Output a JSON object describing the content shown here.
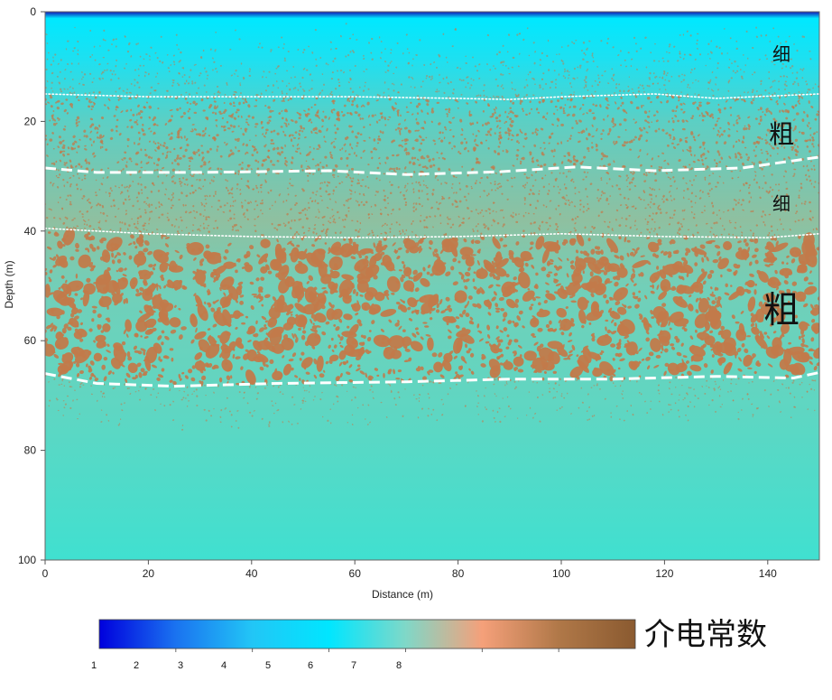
{
  "chart_data": {
    "type": "heatmap",
    "xlabel": "Distance (m)",
    "ylabel": "Depth (m)",
    "xlim": [
      0,
      150
    ],
    "ylim": [
      0,
      100
    ],
    "y_inverted": true,
    "x_ticks": [
      0,
      20,
      40,
      60,
      80,
      100,
      120,
      140
    ],
    "y_ticks": [
      0,
      20,
      40,
      60,
      80,
      100
    ],
    "layers": [
      {
        "label": "细",
        "top_depth": 0,
        "bottom_depth": 15.5,
        "texture": "fine"
      },
      {
        "label": "粗",
        "top_depth": 15.5,
        "bottom_depth": 29,
        "texture": "coarse"
      },
      {
        "label": "细",
        "top_depth": 29,
        "bottom_depth": 41,
        "texture": "fine"
      },
      {
        "label": "粗",
        "top_depth": 41,
        "bottom_depth": 67.5,
        "texture": "coarse"
      }
    ],
    "boundaries": [
      {
        "style": "dotted",
        "points": [
          [
            0,
            15
          ],
          [
            20,
            15.5
          ],
          [
            40,
            15.5
          ],
          [
            60,
            15.5
          ],
          [
            80,
            15.8
          ],
          [
            90,
            16
          ],
          [
            100,
            15.5
          ],
          [
            118,
            15
          ],
          [
            130,
            15.8
          ],
          [
            150,
            15
          ]
        ]
      },
      {
        "style": "dashed",
        "points": [
          [
            0,
            28.5
          ],
          [
            10,
            29.3
          ],
          [
            30,
            29.3
          ],
          [
            55,
            29
          ],
          [
            70,
            29.7
          ],
          [
            88,
            29.2
          ],
          [
            103,
            28.3
          ],
          [
            118,
            29
          ],
          [
            135,
            28.5
          ],
          [
            150,
            26.5
          ]
        ]
      },
      {
        "style": "dotted",
        "points": [
          [
            0,
            39.5
          ],
          [
            20,
            40.5
          ],
          [
            40,
            41
          ],
          [
            60,
            41.2
          ],
          [
            80,
            41
          ],
          [
            100,
            40.5
          ],
          [
            120,
            41
          ],
          [
            140,
            41.2
          ],
          [
            150,
            40.5
          ]
        ]
      },
      {
        "style": "dashed",
        "points": [
          [
            0,
            66
          ],
          [
            10,
            67.8
          ],
          [
            25,
            68.3
          ],
          [
            45,
            67.8
          ],
          [
            70,
            67.5
          ],
          [
            90,
            67
          ],
          [
            110,
            67
          ],
          [
            130,
            66.5
          ],
          [
            145,
            66.8
          ],
          [
            150,
            65.8
          ]
        ]
      }
    ],
    "colorbar": {
      "title": "介电常数",
      "tick_labels": [
        "1",
        "2",
        "3",
        "4",
        "5",
        "6",
        "7",
        "8"
      ],
      "colors": [
        "#0000dd",
        "#1a73f0",
        "#22c6f6",
        "#00e6ff",
        "#7fd8c8",
        "#f5a07a",
        "#b07848",
        "#8a5a30"
      ]
    },
    "colors": {
      "surface": "#1414b4",
      "top": "#00e8ff",
      "mid": "#7ec8b0",
      "bottom": "#40e0d0",
      "grain": "#c27a4a"
    }
  }
}
